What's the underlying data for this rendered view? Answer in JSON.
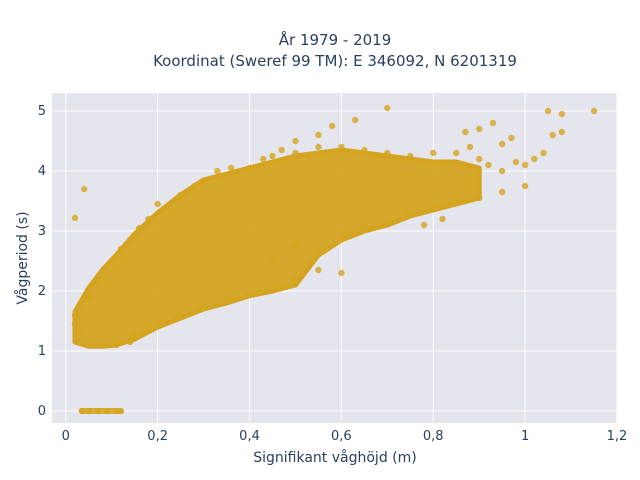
{
  "chart_data": {
    "type": "scatter",
    "title_line1": "År 1979 - 2019",
    "title_line2": "Koordinat (Sweref 99 TM): E 346092, N 6201319",
    "xlabel": "Signifikant våghöjd (m)",
    "ylabel": "Vågperiod (s)",
    "xlim": [
      -0.03,
      1.2
    ],
    "ylim": [
      -0.2,
      5.3
    ],
    "xticks": [
      0,
      0.2,
      0.4,
      0.6,
      0.8,
      1,
      1.2
    ],
    "xtick_labels": [
      "0",
      "0,2",
      "0,4",
      "0,6",
      "0,8",
      "1",
      "1,2"
    ],
    "yticks": [
      0,
      1,
      2,
      3,
      4,
      5
    ],
    "ytick_labels": [
      "0",
      "1",
      "2",
      "3",
      "4",
      "5"
    ],
    "grid": true,
    "marker_color": "#d4a420",
    "plot_bg": "#e5e5ee",
    "points": [
      [
        0.02,
        3.22
      ],
      [
        0.04,
        3.7
      ],
      [
        0.02,
        1.6
      ],
      [
        0.02,
        1.45
      ],
      [
        0.03,
        1.3
      ],
      [
        0.025,
        1.55
      ],
      [
        0.035,
        0
      ],
      [
        0.05,
        0
      ],
      [
        0.07,
        0
      ],
      [
        0.09,
        0
      ],
      [
        0.11,
        0
      ],
      [
        0.12,
        0
      ],
      [
        0.05,
        1.1
      ],
      [
        0.08,
        1.1
      ],
      [
        0.11,
        1.1
      ],
      [
        0.14,
        1.15
      ],
      [
        0.05,
        1.9
      ],
      [
        0.07,
        2.1
      ],
      [
        0.08,
        2.3
      ],
      [
        0.1,
        2.5
      ],
      [
        0.12,
        2.7
      ],
      [
        0.14,
        2.85
      ],
      [
        0.16,
        3.05
      ],
      [
        0.18,
        3.2
      ],
      [
        0.2,
        3.45
      ],
      [
        0.22,
        3.4
      ],
      [
        0.25,
        3.6
      ],
      [
        0.28,
        3.75
      ],
      [
        0.3,
        3.8
      ],
      [
        0.33,
        4.0
      ],
      [
        0.36,
        4.05
      ],
      [
        0.4,
        4.05
      ],
      [
        0.43,
        4.2
      ],
      [
        0.45,
        4.25
      ],
      [
        0.5,
        4.3
      ],
      [
        0.55,
        4.4
      ],
      [
        0.6,
        4.4
      ],
      [
        0.65,
        4.35
      ],
      [
        0.7,
        4.3
      ],
      [
        0.75,
        4.25
      ],
      [
        0.8,
        4.3
      ],
      [
        0.85,
        4.3
      ],
      [
        0.88,
        4.4
      ],
      [
        0.9,
        4.2
      ],
      [
        0.92,
        4.1
      ],
      [
        0.95,
        4.0
      ],
      [
        0.98,
        4.15
      ],
      [
        1.0,
        4.1
      ],
      [
        1.02,
        4.2
      ],
      [
        1.04,
        4.3
      ],
      [
        1.06,
        4.6
      ],
      [
        1.08,
        4.65
      ],
      [
        1.05,
        5.0
      ],
      [
        1.08,
        4.95
      ],
      [
        1.15,
        5.0
      ],
      [
        0.87,
        4.65
      ],
      [
        0.9,
        4.7
      ],
      [
        0.93,
        4.8
      ],
      [
        0.95,
        4.45
      ],
      [
        0.97,
        4.55
      ],
      [
        0.7,
        5.05
      ],
      [
        0.63,
        4.85
      ],
      [
        0.58,
        4.75
      ],
      [
        0.55,
        4.6
      ],
      [
        0.5,
        4.5
      ],
      [
        0.47,
        4.35
      ],
      [
        0.15,
        1.25
      ],
      [
        0.2,
        1.45
      ],
      [
        0.25,
        1.6
      ],
      [
        0.3,
        1.75
      ],
      [
        0.35,
        1.85
      ],
      [
        0.4,
        1.95
      ],
      [
        0.45,
        2.05
      ],
      [
        0.5,
        2.2
      ],
      [
        0.55,
        2.35
      ],
      [
        0.6,
        2.3
      ],
      [
        0.55,
        2.7
      ],
      [
        0.6,
        2.9
      ],
      [
        0.65,
        3.05
      ],
      [
        0.7,
        3.15
      ],
      [
        0.75,
        3.3
      ],
      [
        0.8,
        3.4
      ],
      [
        0.85,
        3.5
      ],
      [
        0.9,
        3.55
      ],
      [
        0.95,
        3.65
      ],
      [
        1.0,
        3.75
      ],
      [
        0.82,
        3.2
      ],
      [
        0.78,
        3.1
      ],
      [
        0.5,
        2.75
      ],
      [
        0.45,
        2.5
      ]
    ],
    "density_band": [
      {
        "x": 0.02,
        "lo": 1.15,
        "hi": 1.65
      },
      {
        "x": 0.05,
        "lo": 1.08,
        "hi": 2.05
      },
      {
        "x": 0.08,
        "lo": 1.08,
        "hi": 2.35
      },
      {
        "x": 0.11,
        "lo": 1.1,
        "hi": 2.6
      },
      {
        "x": 0.15,
        "lo": 1.2,
        "hi": 2.95
      },
      {
        "x": 0.2,
        "lo": 1.4,
        "hi": 3.3
      },
      {
        "x": 0.25,
        "lo": 1.55,
        "hi": 3.6
      },
      {
        "x": 0.3,
        "lo": 1.7,
        "hi": 3.85
      },
      {
        "x": 0.35,
        "lo": 1.8,
        "hi": 3.95
      },
      {
        "x": 0.4,
        "lo": 1.92,
        "hi": 4.05
      },
      {
        "x": 0.45,
        "lo": 2.0,
        "hi": 4.15
      },
      {
        "x": 0.5,
        "lo": 2.1,
        "hi": 4.25
      },
      {
        "x": 0.55,
        "lo": 2.6,
        "hi": 4.3
      },
      {
        "x": 0.6,
        "lo": 2.85,
        "hi": 4.35
      },
      {
        "x": 0.65,
        "lo": 3.0,
        "hi": 4.3
      },
      {
        "x": 0.7,
        "lo": 3.1,
        "hi": 4.25
      },
      {
        "x": 0.75,
        "lo": 3.25,
        "hi": 4.2
      },
      {
        "x": 0.8,
        "lo": 3.35,
        "hi": 4.15
      },
      {
        "x": 0.85,
        "lo": 3.45,
        "hi": 4.15
      },
      {
        "x": 0.9,
        "lo": 3.55,
        "hi": 4.05
      }
    ]
  }
}
